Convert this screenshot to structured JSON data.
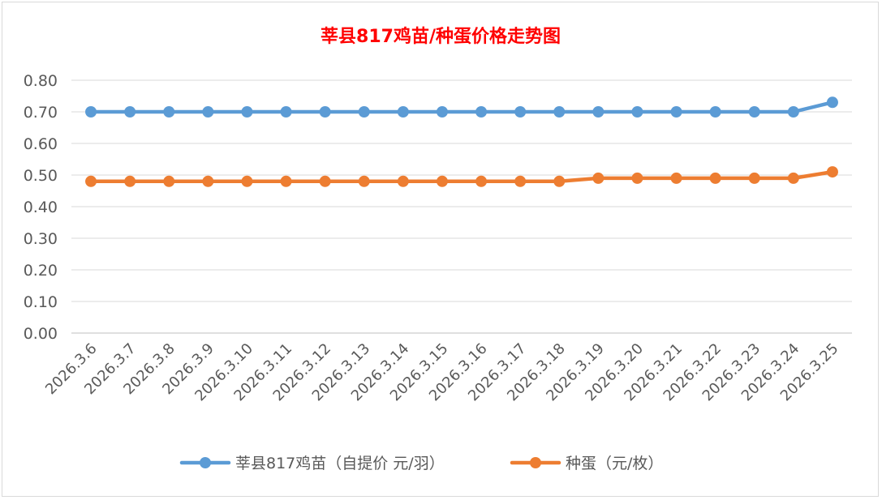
{
  "chart_data": {
    "type": "line",
    "title": "莘县817鸡苗/种蛋价格走势图",
    "categories": [
      "2026.3.6",
      "2026.3.7",
      "2026.3.8",
      "2026.3.9",
      "2026.3.10",
      "2026.3.11",
      "2026.3.12",
      "2026.3.13",
      "2026.3.14",
      "2026.3.15",
      "2026.3.16",
      "2026.3.17",
      "2026.3.18",
      "2026.3.19",
      "2026.3.20",
      "2026.3.21",
      "2026.3.22",
      "2026.3.23",
      "2026.3.24",
      "2026.3.25"
    ],
    "series": [
      {
        "name": "莘县817鸡苗（自提价 元/羽）",
        "color": "#5b9bd5",
        "values": [
          0.7,
          0.7,
          0.7,
          0.7,
          0.7,
          0.7,
          0.7,
          0.7,
          0.7,
          0.7,
          0.7,
          0.7,
          0.7,
          0.7,
          0.7,
          0.7,
          0.7,
          0.7,
          0.7,
          0.73
        ]
      },
      {
        "name": "种蛋（元/枚）",
        "color": "#ed7d31",
        "values": [
          0.48,
          0.48,
          0.48,
          0.48,
          0.48,
          0.48,
          0.48,
          0.48,
          0.48,
          0.48,
          0.48,
          0.48,
          0.48,
          0.49,
          0.49,
          0.49,
          0.49,
          0.49,
          0.49,
          0.51
        ]
      }
    ],
    "xlabel": "",
    "ylabel": "",
    "ylim": [
      0,
      0.8
    ],
    "yticks": [
      "0.00",
      "0.10",
      "0.20",
      "0.30",
      "0.40",
      "0.50",
      "0.60",
      "0.70",
      "0.80"
    ],
    "grid": true,
    "legend": "bottom"
  }
}
